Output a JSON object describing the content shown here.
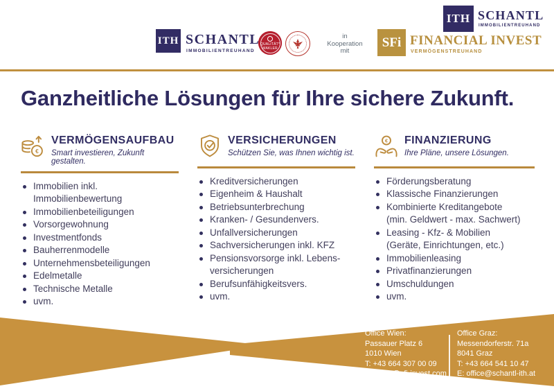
{
  "header": {
    "ith": {
      "logo_text": "ITH",
      "name": "SCHANTL",
      "tagline": "IMMOBILIENTREUHAND"
    },
    "badge_quality": {
      "line1": "QUALITÄT*",
      "line2": "MAKLER"
    },
    "badge_seal": {
      "label": "Staatswappen-Siegel"
    },
    "cooperation": {
      "line1": "in",
      "line2": "Kooperation",
      "line3": "mit"
    },
    "sfi": {
      "logo_text": "SFi",
      "name": "FINANCIAL INVEST",
      "tagline": "VERMÖGENSTREUHAND"
    },
    "corner": {
      "logo_text": "ITH",
      "name": "SCHANTL",
      "tagline": "IMMOBILIENTREUHAND"
    }
  },
  "headline": "Ganzheitliche Lösungen für Ihre sichere Zukunft.",
  "columns": [
    {
      "title": "VERMÖGENSAUFBAU",
      "subtitle": "Smart investieren, Zukunft gestalten.",
      "icon": "coins-euro-growth-icon",
      "items": [
        [
          "Immobilien inkl.",
          "Immobilienbewertung"
        ],
        [
          "Immobilienbeteiligungen"
        ],
        [
          "Vorsorgewohnung"
        ],
        [
          "Investmentfonds"
        ],
        [
          "Bauherrenmodelle"
        ],
        [
          "Unternehmensbeteiligungen"
        ],
        [
          "Edelmetalle"
        ],
        [
          "Technische Metalle"
        ],
        [
          "uvm."
        ]
      ]
    },
    {
      "title": "VERSICHERUNGEN",
      "subtitle": "Schützen Sie, was Ihnen wichtig ist.",
      "icon": "shield-check-icon",
      "items": [
        [
          "Kreditversicherungen"
        ],
        [
          "Eigenheim & Haushalt"
        ],
        [
          "Betriebsunterbrechung"
        ],
        [
          "Kranken- / Gesundenvers."
        ],
        [
          "Unfallversicherungen"
        ],
        [
          "Sachversicherungen inkl. KFZ"
        ],
        [
          "Pensionsvorsorge inkl. Lebens-",
          "versicherungen"
        ],
        [
          "Berufsunfähigkeitsvers."
        ],
        [
          "uvm."
        ]
      ]
    },
    {
      "title": "FINANZIERUNG",
      "subtitle": "Ihre Pläne, unsere Lösungen.",
      "icon": "hands-euro-icon",
      "items": [
        [
          "Förderungsberatung"
        ],
        [
          "Klassische Finanzierungen"
        ],
        [
          "Kombinierte Kreditangebote",
          "(min. Geldwert - max. Sachwert)"
        ],
        [
          "Leasing - Kfz- & Mobilien",
          "(Geräte, Einrichtungen, etc.)"
        ],
        [
          "Immobilienleasing"
        ],
        [
          "Privatfinanzierungen"
        ],
        [
          "Umschuldungen"
        ],
        [
          "uvm."
        ]
      ]
    }
  ],
  "offices": [
    {
      "title": "Office Wien:",
      "address1": "Passauer Platz 6",
      "address2": "1010 Wien",
      "phone": "T: +43 664 307 00 09",
      "email": "E: office@sfi-invest.com"
    },
    {
      "title": "Office Graz:",
      "address1": "Messendorferstr. 71a",
      "address2": "8041 Graz",
      "phone": "T: +43 664 541 10 47",
      "email": "E: office@schantl-ith.at"
    }
  ],
  "colors": {
    "navy": "#322c64",
    "gold": "#c2913f",
    "red": "#b51f2e",
    "list_text": "#413e5b"
  }
}
